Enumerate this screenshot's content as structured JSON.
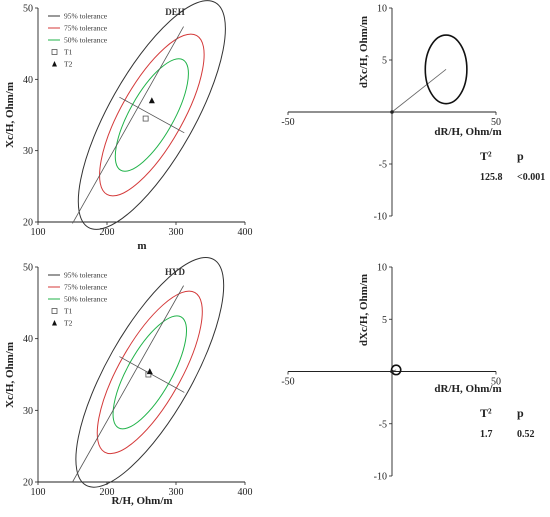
{
  "legend": {
    "items": [
      {
        "label": "95% tolerance",
        "color": "#333333",
        "kind": "line"
      },
      {
        "label": "75% tolerance",
        "color": "#d43a3a",
        "kind": "line"
      },
      {
        "label": "50% tolerance",
        "color": "#21b34a",
        "kind": "line"
      },
      {
        "label": "T1",
        "color": "#555555",
        "kind": "open-square"
      },
      {
        "label": "T2",
        "color": "#111111",
        "kind": "filled-triangle"
      }
    ]
  },
  "chart_data": [
    {
      "type": "scatter",
      "title": "DEH",
      "xlabel": "m",
      "ylabel": "Xc/H, Ohm/m",
      "xlim": [
        100,
        400
      ],
      "ylim": [
        20,
        50
      ],
      "xticks": [
        100,
        200,
        300,
        400
      ],
      "yticks": [
        20,
        30,
        40,
        50
      ],
      "center": [
        265,
        35
      ],
      "ellipses": [
        {
          "name": "95% tolerance",
          "rx": 72,
          "ry": 11.6
        },
        {
          "name": "75% tolerance",
          "rx": 52,
          "ry": 8.2
        },
        {
          "name": "50% tolerance",
          "rx": 37,
          "ry": 5.7
        }
      ],
      "major_axis": {
        "from": [
          150,
          19.8
        ],
        "to": [
          311,
          47.4
        ]
      },
      "minor_axis": {
        "from": [
          218,
          37.5
        ],
        "to": [
          312,
          32.5
        ]
      },
      "series": [
        {
          "name": "T1",
          "marker": "open-square",
          "points": [
            [
              256,
              34.5
            ]
          ]
        },
        {
          "name": "T2",
          "marker": "filled-triangle",
          "points": [
            [
              265,
              37
            ]
          ]
        }
      ]
    },
    {
      "type": "scatter",
      "xlabel": "dR/H, Ohm/m",
      "ylabel": "dXc/H, Ohm/m",
      "xlim": [
        -50,
        50
      ],
      "ylim": [
        -10,
        10
      ],
      "xticks": [
        -50,
        50
      ],
      "yticks": [
        -10,
        -5,
        5,
        10
      ],
      "ellipse": {
        "center": [
          26,
          4.1
        ],
        "rx": 10,
        "ry": 3.3
      },
      "vector": {
        "from": [
          0,
          0
        ],
        "to": [
          26,
          4.1
        ]
      },
      "origin_point": [
        0,
        0
      ],
      "stats": {
        "t2_label": "T²",
        "p_label": "p",
        "t2_value": "125.8",
        "p_value": "<0.001"
      }
    },
    {
      "type": "scatter",
      "title": "HYD",
      "xlabel": "R/H, Ohm/m",
      "ylabel": "Xc/H, Ohm/m",
      "xlim": [
        100,
        400
      ],
      "ylim": [
        20,
        50
      ],
      "xticks": [
        100,
        200,
        300,
        400
      ],
      "yticks": [
        20,
        30,
        40,
        50
      ],
      "center": [
        262,
        35.3
      ],
      "ellipses": [
        {
          "name": "95% tolerance",
          "rx": 72,
          "ry": 11.6
        },
        {
          "name": "75% tolerance",
          "rx": 52,
          "ry": 8.2
        },
        {
          "name": "50% tolerance",
          "rx": 37,
          "ry": 5.7
        }
      ],
      "major_axis": {
        "from": [
          150,
          20
        ],
        "to": [
          311,
          47.4
        ]
      },
      "minor_axis": {
        "from": [
          218,
          37.5
        ],
        "to": [
          312,
          32.5
        ]
      },
      "series": [
        {
          "name": "T1",
          "marker": "open-square",
          "points": [
            [
              260,
              35
            ]
          ]
        },
        {
          "name": "T2",
          "marker": "filled-triangle",
          "points": [
            [
              262,
              35.4
            ]
          ]
        }
      ]
    },
    {
      "type": "scatter",
      "xlabel": "dR/H, Ohm/m",
      "ylabel": "dXc/H, Ohm/m",
      "xlim": [
        -50,
        50
      ],
      "ylim": [
        -10,
        10
      ],
      "xticks": [
        -50,
        50
      ],
      "yticks": [
        -10,
        -5,
        5,
        10
      ],
      "ellipse": {
        "center": [
          2,
          0.15
        ],
        "rx": 2.2,
        "ry": 0.45
      },
      "vector": {
        "from": [
          0,
          0
        ],
        "to": [
          2,
          0.15
        ]
      },
      "origin_point": [
        0,
        0
      ],
      "stats": {
        "t2_label": "T²",
        "p_label": "p",
        "t2_value": "1.7",
        "p_value": "0.52"
      }
    }
  ]
}
